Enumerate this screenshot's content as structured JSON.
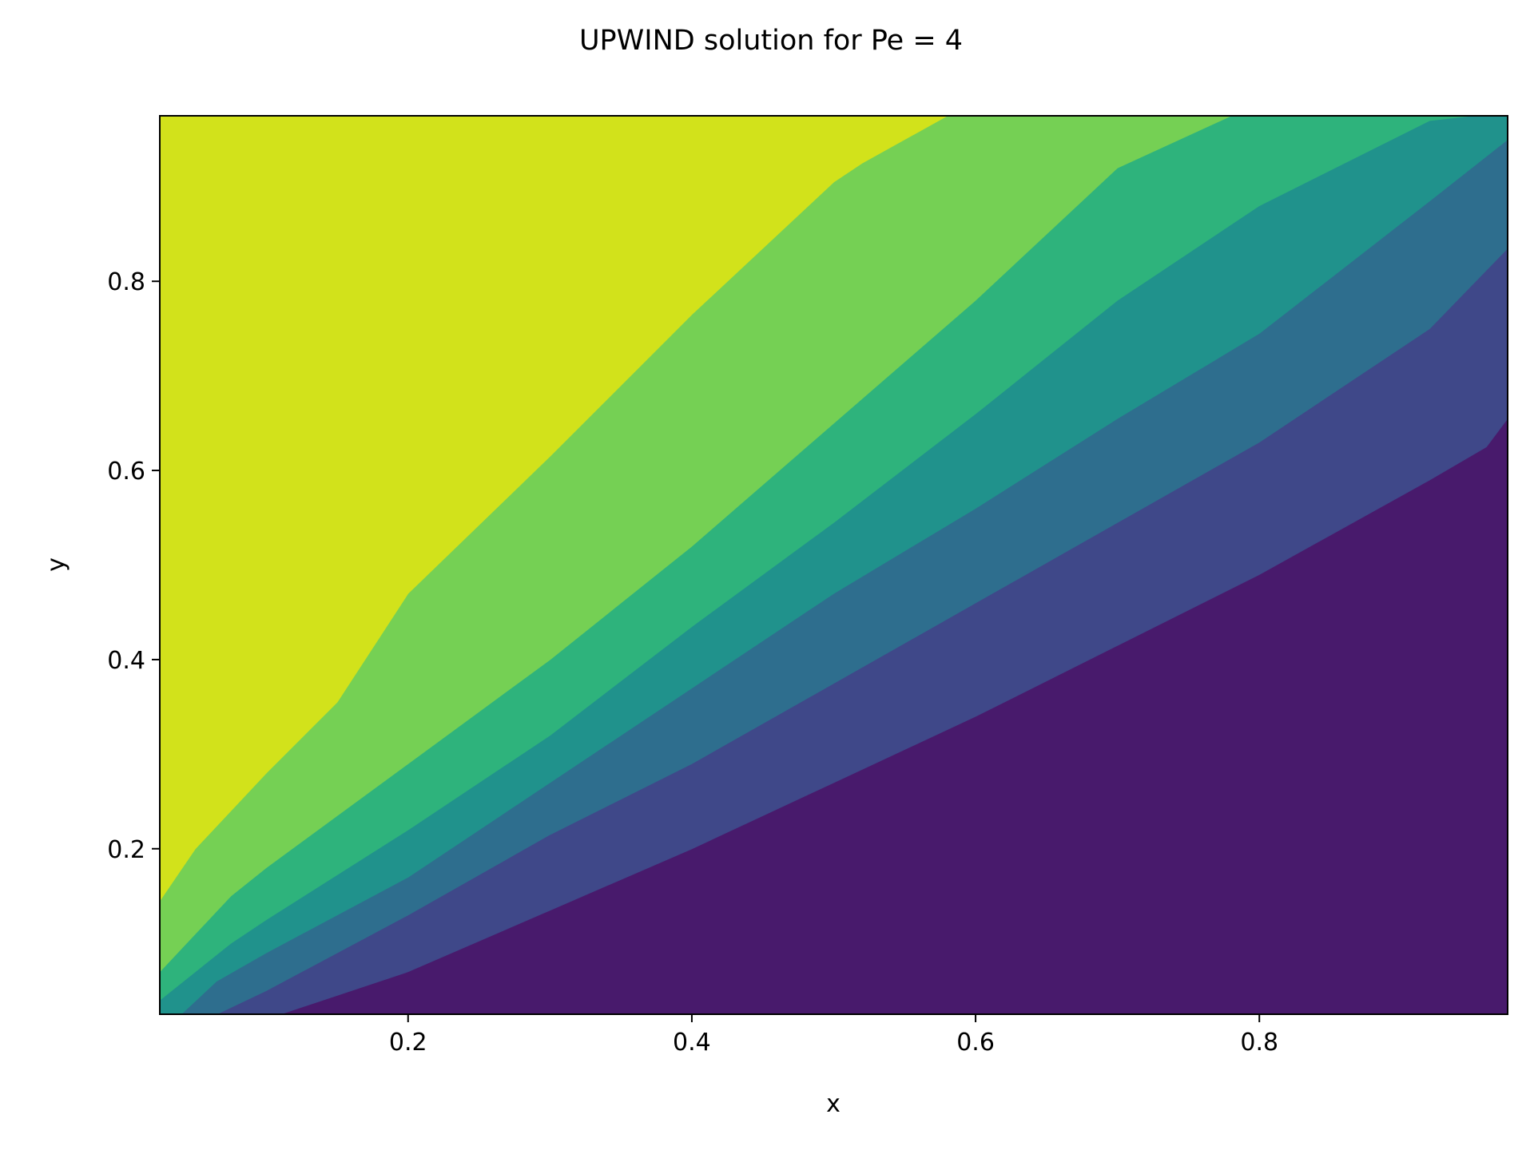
{
  "chart_data": {
    "type": "contourf",
    "title": "UPWIND solution for Pe = 4",
    "xlabel": "x",
    "ylabel": "y",
    "xlim": [
      0.025,
      0.975
    ],
    "ylim": [
      0.025,
      0.975
    ],
    "xticks": [
      0.2,
      0.4,
      0.6,
      0.8
    ],
    "yticks": [
      0.2,
      0.4,
      0.6,
      0.8
    ],
    "tick_labels": {
      "x": [
        "0.2",
        "0.4",
        "0.6",
        "0.8"
      ],
      "y": [
        "0.2",
        "0.4",
        "0.6",
        "0.8"
      ]
    },
    "grid": false,
    "legend": "none",
    "colormap": "viridis",
    "level_colors": [
      "#481a6c",
      "#3f4889",
      "#2e6e8e",
      "#20928c",
      "#2eb37c",
      "#75d054",
      "#d2e21b"
    ],
    "contour_lines": [
      {
        "points": [
          [
            0.11,
            0.025
          ],
          [
            0.2,
            0.07
          ],
          [
            0.3,
            0.135
          ],
          [
            0.4,
            0.2
          ],
          [
            0.5,
            0.27
          ],
          [
            0.6,
            0.34
          ],
          [
            0.7,
            0.415
          ],
          [
            0.8,
            0.49
          ],
          [
            0.92,
            0.59
          ],
          [
            0.96,
            0.625
          ],
          [
            0.975,
            0.655
          ]
        ]
      },
      {
        "points": [
          [
            0.065,
            0.025
          ],
          [
            0.1,
            0.05
          ],
          [
            0.2,
            0.13
          ],
          [
            0.3,
            0.215
          ],
          [
            0.4,
            0.29
          ],
          [
            0.5,
            0.375
          ],
          [
            0.6,
            0.46
          ],
          [
            0.7,
            0.545
          ],
          [
            0.8,
            0.63
          ],
          [
            0.92,
            0.75
          ],
          [
            0.975,
            0.835
          ]
        ]
      },
      {
        "points": [
          [
            0.04,
            0.025
          ],
          [
            0.065,
            0.06
          ],
          [
            0.1,
            0.09
          ],
          [
            0.2,
            0.17
          ],
          [
            0.3,
            0.27
          ],
          [
            0.4,
            0.37
          ],
          [
            0.5,
            0.47
          ],
          [
            0.6,
            0.56
          ],
          [
            0.7,
            0.655
          ],
          [
            0.8,
            0.745
          ],
          [
            0.92,
            0.885
          ],
          [
            0.975,
            0.95
          ]
        ]
      },
      {
        "points": [
          [
            0.025,
            0.04
          ],
          [
            0.05,
            0.07
          ],
          [
            0.075,
            0.1
          ],
          [
            0.1,
            0.125
          ],
          [
            0.2,
            0.22
          ],
          [
            0.3,
            0.32
          ],
          [
            0.4,
            0.435
          ],
          [
            0.5,
            0.545
          ],
          [
            0.6,
            0.66
          ],
          [
            0.7,
            0.78
          ],
          [
            0.8,
            0.88
          ],
          [
            0.92,
            0.97
          ],
          [
            0.95,
            0.975
          ]
        ]
      },
      {
        "points": [
          [
            0.025,
            0.07
          ],
          [
            0.05,
            0.11
          ],
          [
            0.075,
            0.15
          ],
          [
            0.1,
            0.18
          ],
          [
            0.2,
            0.29
          ],
          [
            0.3,
            0.4
          ],
          [
            0.4,
            0.52
          ],
          [
            0.5,
            0.65
          ],
          [
            0.6,
            0.78
          ],
          [
            0.7,
            0.92
          ],
          [
            0.78,
            0.975
          ]
        ]
      },
      {
        "points": [
          [
            0.025,
            0.145
          ],
          [
            0.05,
            0.2
          ],
          [
            0.075,
            0.24
          ],
          [
            0.1,
            0.28
          ],
          [
            0.15,
            0.355
          ],
          [
            0.2,
            0.47
          ],
          [
            0.3,
            0.615
          ],
          [
            0.4,
            0.765
          ],
          [
            0.5,
            0.905
          ],
          [
            0.52,
            0.925
          ],
          [
            0.58,
            0.975
          ]
        ]
      }
    ]
  }
}
